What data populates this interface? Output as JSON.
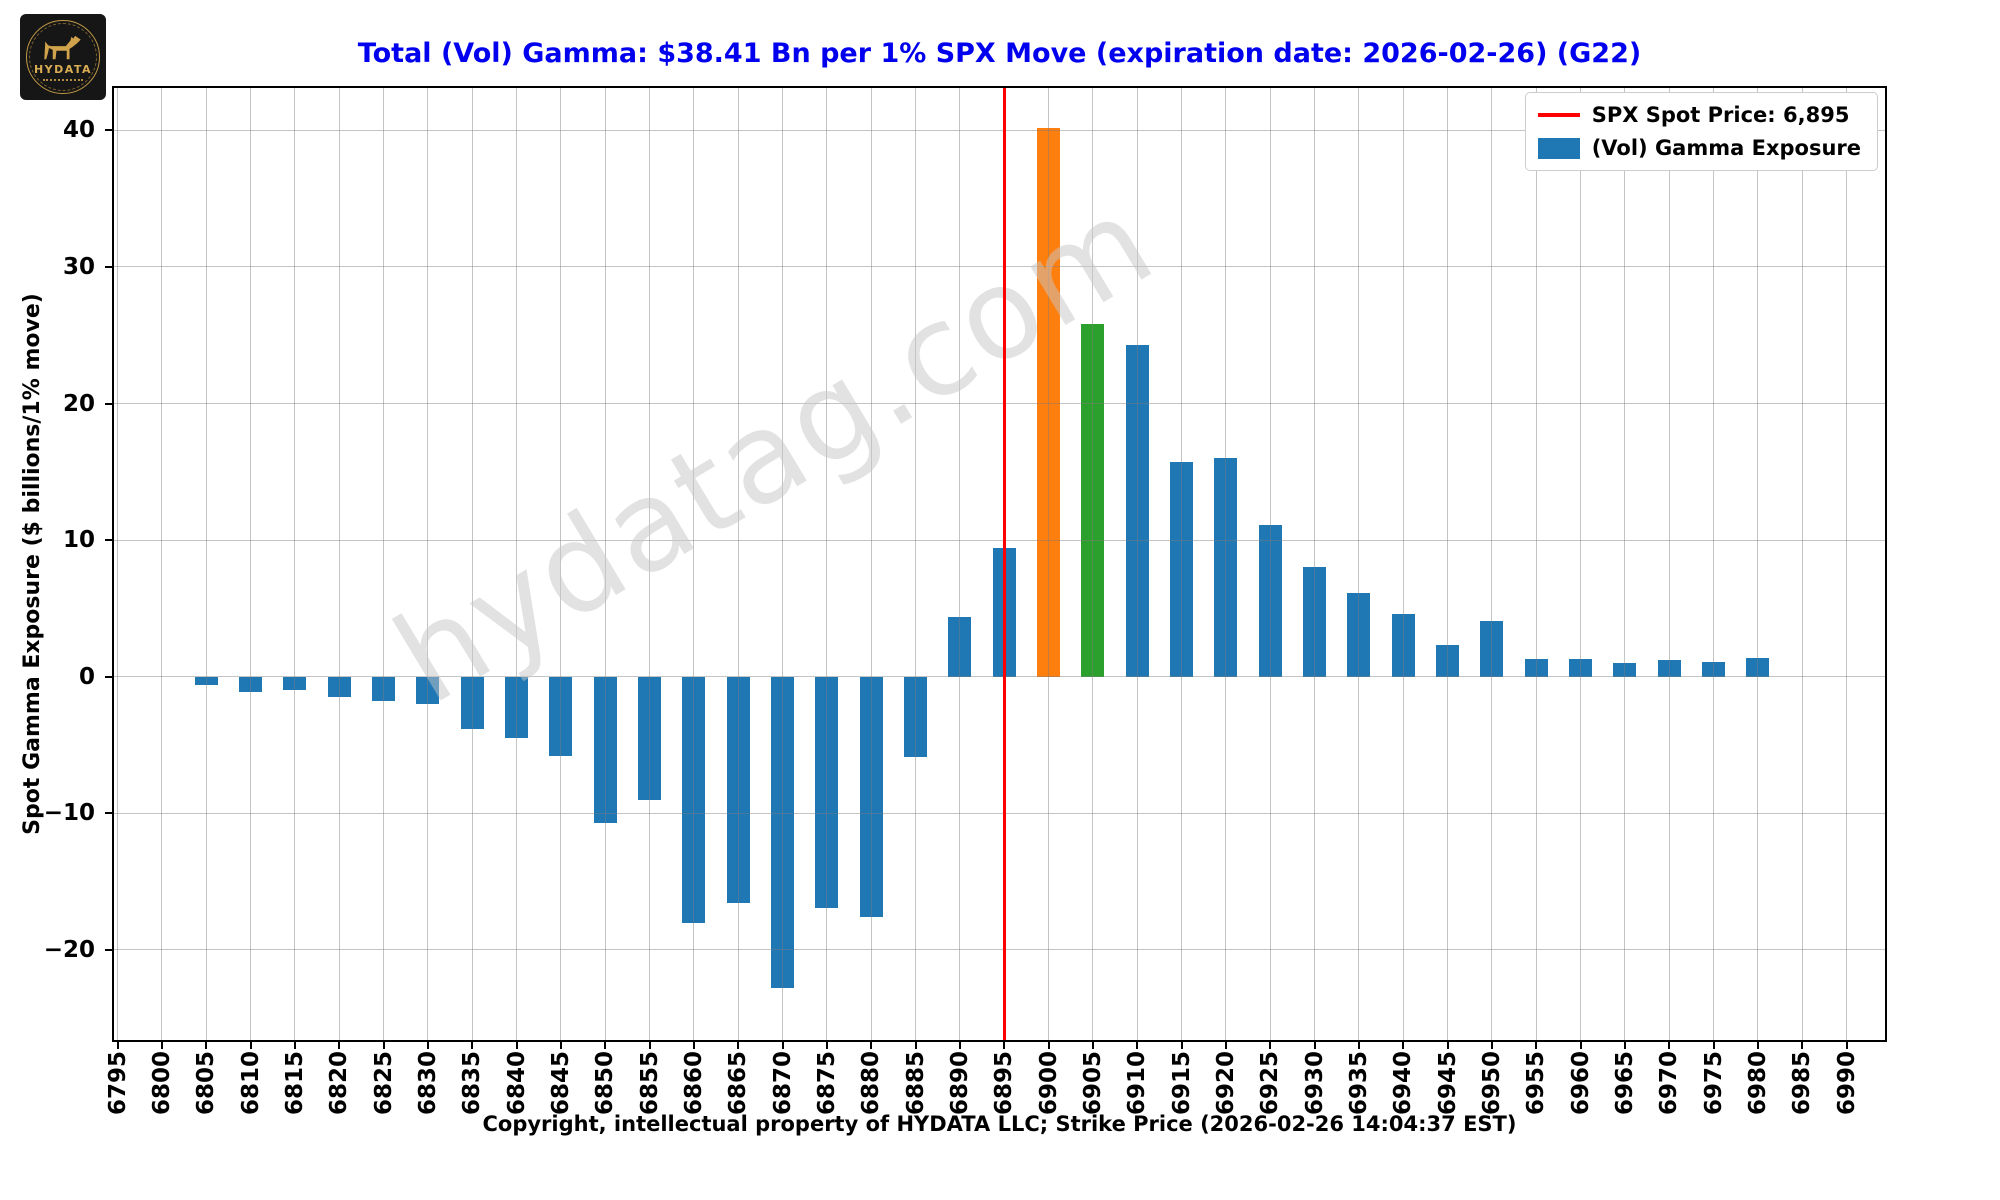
{
  "logo": {
    "brand": "HYDATA"
  },
  "watermark": "hydatag.com",
  "legend": {
    "spot": {
      "label": "SPX Spot Price: 6,895",
      "color": "#ff0000"
    },
    "gamma": {
      "label": "(Vol) Gamma Exposure",
      "color": "#1f77b4"
    }
  },
  "colors": {
    "title": "#0000ee",
    "grid": "#c3c3c3",
    "axis": "#000000",
    "gold": "#d8ac52",
    "logo_bg": "#161616"
  },
  "chart_data": {
    "type": "bar",
    "title": "Total (Vol) Gamma: $38.41 Bn per 1% SPX Move (expiration date: 2026-02-26) (G22)",
    "xlabel": "Copyright, intellectual property of HYDATA LLC; Strike Price (2026-02-26 14:04:37 EST)",
    "ylabel": "Spot Gamma Exposure ($ billions/1% move)",
    "categories": [
      "6795",
      "6800",
      "6805",
      "6810",
      "6815",
      "6820",
      "6825",
      "6830",
      "6835",
      "6840",
      "6845",
      "6850",
      "6855",
      "6860",
      "6865",
      "6870",
      "6875",
      "6880",
      "6885",
      "6890",
      "6895",
      "6900",
      "6905",
      "6910",
      "6915",
      "6920",
      "6925",
      "6930",
      "6935",
      "6940",
      "6945",
      "6950",
      "6955",
      "6960",
      "6965",
      "6970",
      "6975",
      "6980",
      "6985",
      "6990"
    ],
    "values": [
      0,
      0,
      -0.6,
      -1.1,
      -1.0,
      -1.5,
      -1.8,
      -2.0,
      -3.8,
      -4.5,
      -5.8,
      -10.7,
      -9.0,
      -18.0,
      -16.6,
      -22.8,
      -16.9,
      -17.6,
      -5.9,
      4.4,
      9.4,
      40.2,
      25.8,
      24.3,
      15.7,
      16.0,
      11.1,
      8.0,
      6.1,
      4.6,
      2.3,
      4.1,
      1.3,
      1.3,
      1.0,
      1.2,
      1.1,
      1.4,
      0,
      0
    ],
    "bar_color_default": "#1f77b4",
    "bar_color_overrides": {
      "6900": "#ff7f0e",
      "6905": "#2ca02c"
    },
    "spot_strike": "6895",
    "spot_price_label": "6,895",
    "spot_line_color": "#ff0000",
    "ylim": [
      -26.6,
      43.1
    ],
    "y_ticks": [
      {
        "label": "40",
        "value": 40
      },
      {
        "label": "30",
        "value": 30
      },
      {
        "label": "20",
        "value": 20
      },
      {
        "label": "10",
        "value": 10
      },
      {
        "label": "0",
        "value": 0
      },
      {
        "label": "−10",
        "value": -10
      },
      {
        "label": "−20",
        "value": -20
      }
    ],
    "grid": true,
    "legend_position": "upper right"
  }
}
